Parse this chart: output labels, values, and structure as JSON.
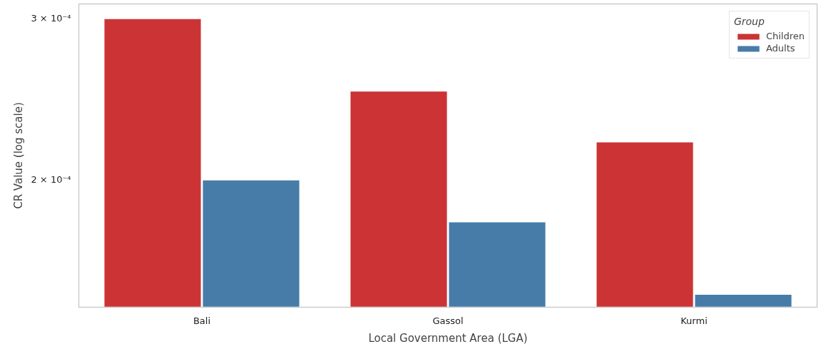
{
  "chart_data": {
    "type": "bar",
    "xlabel": "Local Government Area (LGA)",
    "ylabel": "CR Value (log scale)",
    "legend_title": "Group",
    "categories": [
      "Bali",
      "Gassol",
      "Kurmi"
    ],
    "series": [
      {
        "name": "Children",
        "color": "#cb3335",
        "values": [
          0.0003,
          0.00025,
          0.00022
        ]
      },
      {
        "name": "Adults",
        "color": "#477ca8",
        "values": [
          0.0002,
          0.00018,
          0.00015
        ]
      }
    ],
    "log": true,
    "ylim": [
      0.0001452,
      0.0003112
    ],
    "yticks": [
      {
        "value": 0.0002,
        "label": "2 × 10⁻⁴"
      },
      {
        "value": 0.0003,
        "label": "3 × 10⁻⁴"
      }
    ],
    "grid": false,
    "legend": "top right"
  }
}
